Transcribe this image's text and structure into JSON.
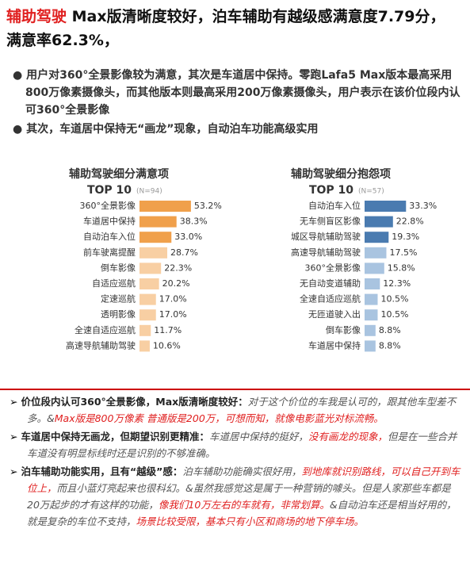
{
  "header": {
    "highlight": "辅助驾驶",
    "title": " Max版清晰度较好，泊车辅助有越级感满意度7.79分，满意率62.3%，"
  },
  "bullets": [
    "用户对360°全景影像较为满意，其次是车道居中保持。零跑Lafa5 Max版本最高采用800万像素摄像头，而其他版本则最高采用200万像素摄像头，用户表示在该价位段内认可360°全景影像",
    "其次，车道居中保持无“画龙”现象，自动泊车功能高级实用"
  ],
  "chart_data": [
    {
      "type": "bar",
      "title": "辅助驾驶细分满意项",
      "subtitle": "TOP 10",
      "note": "(N=94)",
      "categories": [
        "360°全景影像",
        "车道居中保持",
        "自动泊车入位",
        "前车驶离提醒",
        "倒车影像",
        "自适应巡航",
        "定速巡航",
        "透明影像",
        "全速自适应巡航",
        "高速导航辅助驾驶"
      ],
      "values": [
        53.2,
        38.3,
        33.0,
        28.7,
        22.3,
        20.2,
        17.0,
        17.0,
        11.7,
        10.6
      ],
      "value_labels": [
        "53.2%",
        "38.3%",
        "33.0%",
        "28.7%",
        "22.3%",
        "20.2%",
        "17.0%",
        "17.0%",
        "11.7%",
        "10.6%"
      ],
      "colors": [
        "#f0a04b",
        "#f0a04b",
        "#f0a04b",
        "#f8cfa3",
        "#f8cfa3",
        "#f8cfa3",
        "#f8cfa3",
        "#f8cfa3",
        "#f8cfa3",
        "#f8cfa3"
      ]
    },
    {
      "type": "bar",
      "title": "辅助驾驶细分抱怨项",
      "subtitle": "TOP 10",
      "note": "(N=57)",
      "categories": [
        "自动泊车入位",
        "无车侧盲区影像",
        "城区导航辅助驾驶",
        "高速导航辅助驾驶",
        "360°全景影像",
        "无自动变道辅助",
        "全速自适应巡航",
        "无匝道驶入出",
        "倒车影像",
        "车道居中保持"
      ],
      "values": [
        33.3,
        22.8,
        19.3,
        17.5,
        15.8,
        12.3,
        10.5,
        10.5,
        8.8,
        8.8
      ],
      "value_labels": [
        "33.3%",
        "22.8%",
        "19.3%",
        "17.5%",
        "15.8%",
        "12.3%",
        "10.5%",
        "10.5%",
        "8.8%",
        "8.8%"
      ],
      "colors": [
        "#4a7bb0",
        "#4a7bb0",
        "#4a7bb0",
        "#a9c4e0",
        "#a9c4e0",
        "#a9c4e0",
        "#a9c4e0",
        "#a9c4e0",
        "#a9c4e0",
        "#a9c4e0"
      ]
    }
  ],
  "notes": [
    {
      "heading": "价位段内认可360°全景影像，Max版清晰度较好：",
      "parts": [
        {
          "text": "对于这个价位的车我是认可的，跟其他车型差不多。&",
          "color": "#555555"
        },
        {
          "text": "Max版是800万像素 普通版是200万，可想而知，就像电影蓝光对标流畅。",
          "color": "#e02020"
        }
      ]
    },
    {
      "heading": "车道居中保持无画龙，但期望识别更精准：",
      "parts": [
        {
          "text": "车道居中保持的挺好，",
          "color": "#555555"
        },
        {
          "text": "没有画龙的现象，",
          "color": "#e02020"
        },
        {
          "text": "但是在一些合并车道没有明显标线时还是识别的不够准确。",
          "color": "#555555"
        }
      ]
    },
    {
      "heading": "泊车辅助功能实用，且有“越级”感：",
      "parts": [
        {
          "text": "泊车辅助功能确实很好用，",
          "color": "#555555"
        },
        {
          "text": "到地库就识别路线，可以自己开到车位上，",
          "color": "#e02020"
        },
        {
          "text": "而且小蓝灯亮起来也很科幻。&虽然我感觉这是属于一种营销的噱头。但是人家那些车都是20万起步的才有这样的功能，",
          "color": "#555555"
        },
        {
          "text": "像我们10万左右的车就有，非常划算。",
          "color": "#e02020"
        },
        {
          "text": "&自动泊车还是相当好用的，就是复杂的车位不支持，",
          "color": "#555555"
        },
        {
          "text": "场景比较受限，基本只有小区和商场的地下停车场。",
          "color": "#e02020"
        }
      ]
    }
  ]
}
